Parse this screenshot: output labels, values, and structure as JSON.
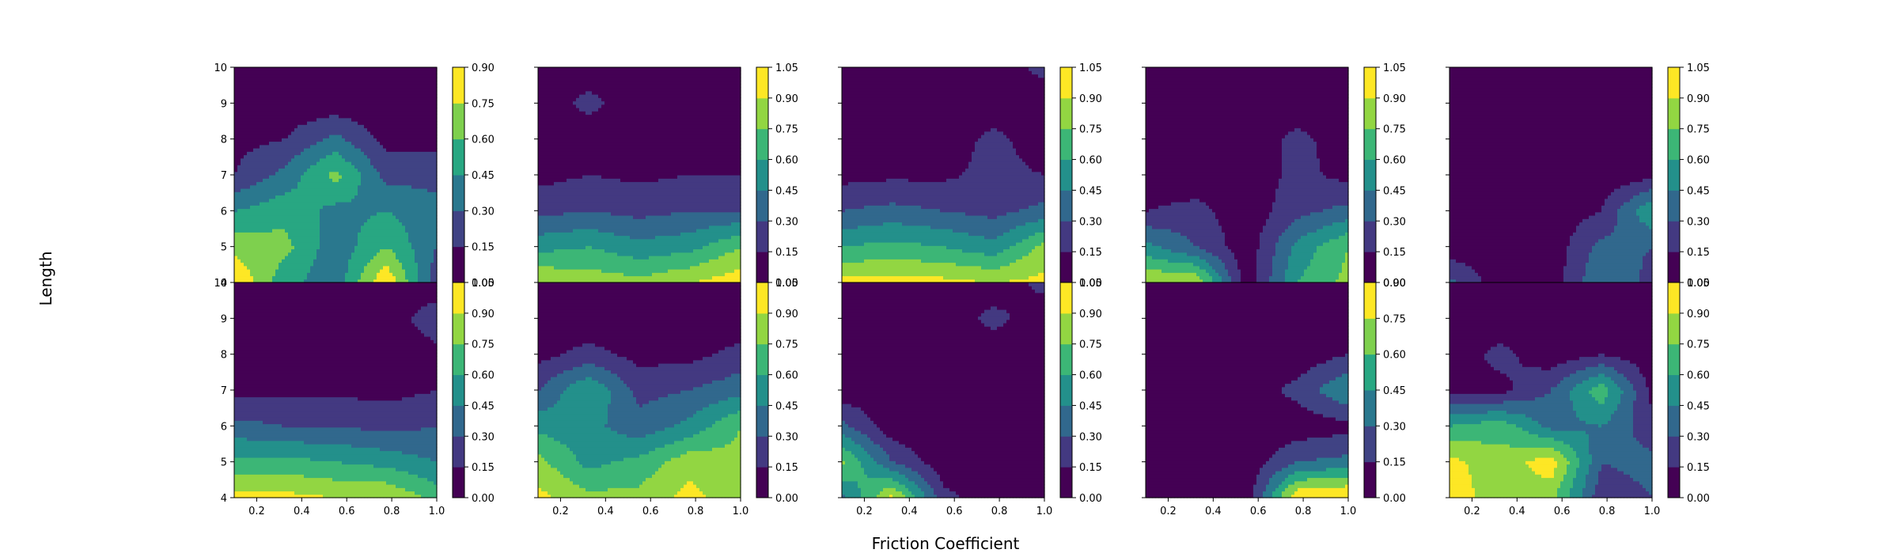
{
  "figure": {
    "xlabel": "Friction Coefficient",
    "ylabel": "Length"
  },
  "chart_data": {
    "type": "heatmap",
    "style": "filled-contour",
    "colormap": "viridis",
    "grid": false,
    "layout": "2 rows x 5 columns",
    "x": [
      0.1,
      0.325,
      0.55,
      0.775,
      1.0
    ],
    "y": [
      4,
      5,
      6,
      7,
      8,
      9,
      10
    ],
    "xlim": [
      0.1,
      1.0
    ],
    "ylim": [
      4,
      10
    ],
    "x_ticks": [
      "0.2",
      "0.4",
      "0.6",
      "0.8",
      "1.0"
    ],
    "y_ticks": [
      "4",
      "5",
      "6",
      "7",
      "8",
      "9",
      "10"
    ],
    "panels": [
      {
        "z": [
          [
            0.9,
            0.5,
            0.35,
            0.9,
            0.2
          ],
          [
            0.7,
            0.65,
            0.35,
            0.6,
            0.3
          ],
          [
            0.45,
            0.55,
            0.4,
            0.45,
            0.35
          ],
          [
            0.15,
            0.35,
            0.65,
            0.25,
            0.25
          ],
          [
            0.1,
            0.15,
            0.35,
            0.1,
            0.1
          ],
          [
            0.05,
            0.05,
            0.05,
            0.05,
            0.05
          ],
          [
            0.05,
            0.05,
            0.05,
            0.05,
            0.05
          ]
        ],
        "colorbar": [
          "0.00",
          "0.15",
          "0.30",
          "0.45",
          "0.60",
          "0.75",
          "0.90"
        ],
        "zmax": 0.9
      },
      {
        "z": [
          [
            0.9,
            0.85,
            0.8,
            0.9,
            1.0
          ],
          [
            0.55,
            0.6,
            0.5,
            0.55,
            0.75
          ],
          [
            0.25,
            0.3,
            0.25,
            0.3,
            0.3
          ],
          [
            0.1,
            0.15,
            0.12,
            0.15,
            0.15
          ],
          [
            0.05,
            0.05,
            0.05,
            0.05,
            0.05
          ],
          [
            0.05,
            0.2,
            0.05,
            0.05,
            0.05
          ],
          [
            0.05,
            0.05,
            0.05,
            0.05,
            0.05
          ]
        ],
        "colorbar": [
          "0.00",
          "0.15",
          "0.30",
          "0.45",
          "0.60",
          "0.75",
          "0.90",
          "1.05"
        ],
        "zmax": 1.05
      },
      {
        "z": [
          [
            0.95,
            0.95,
            0.95,
            0.9,
            0.95
          ],
          [
            0.6,
            0.65,
            0.6,
            0.5,
            0.8
          ],
          [
            0.3,
            0.35,
            0.3,
            0.25,
            0.35
          ],
          [
            0.1,
            0.12,
            0.12,
            0.2,
            0.15
          ],
          [
            0.05,
            0.05,
            0.05,
            0.2,
            0.05
          ],
          [
            0.05,
            0.05,
            0.05,
            0.05,
            0.05
          ],
          [
            0.05,
            0.05,
            0.05,
            0.05,
            0.2
          ]
        ],
        "colorbar": [
          "0.00",
          "0.15",
          "0.30",
          "0.45",
          "0.60",
          "0.75",
          "0.90",
          "1.05"
        ],
        "zmax": 1.05
      },
      {
        "z": [
          [
            0.9,
            0.9,
            0.05,
            0.6,
            0.8
          ],
          [
            0.5,
            0.3,
            0.05,
            0.5,
            0.75
          ],
          [
            0.15,
            0.2,
            0.05,
            0.25,
            0.35
          ],
          [
            0.05,
            0.05,
            0.05,
            0.2,
            0.1
          ],
          [
            0.05,
            0.05,
            0.05,
            0.2,
            0.05
          ],
          [
            0.05,
            0.05,
            0.05,
            0.05,
            0.05
          ],
          [
            0.05,
            0.05,
            0.05,
            0.05,
            0.05
          ]
        ],
        "colorbar": [
          "0.00",
          "0.15",
          "0.30",
          "0.45",
          "0.60",
          "0.75",
          "0.90",
          "1.05"
        ],
        "zmax": 1.05
      },
      {
        "z": [
          [
            0.35,
            0.05,
            0.05,
            0.45,
            0.25
          ],
          [
            0.05,
            0.05,
            0.05,
            0.35,
            0.3
          ],
          [
            0.05,
            0.05,
            0.05,
            0.15,
            0.6
          ],
          [
            0.05,
            0.05,
            0.05,
            0.05,
            0.1
          ],
          [
            0.05,
            0.05,
            0.05,
            0.05,
            0.05
          ],
          [
            0.05,
            0.05,
            0.05,
            0.05,
            0.05
          ],
          [
            0.05,
            0.05,
            0.05,
            0.05,
            0.05
          ]
        ],
        "colorbar": [
          "0.00",
          "0.15",
          "0.30",
          "0.45",
          "0.60",
          "0.75",
          "0.90",
          "1.05"
        ],
        "zmax": 1.05
      },
      {
        "z": [
          [
            0.95,
            0.95,
            0.9,
            0.9,
            0.7
          ],
          [
            0.65,
            0.65,
            0.6,
            0.55,
            0.45
          ],
          [
            0.35,
            0.3,
            0.3,
            0.25,
            0.3
          ],
          [
            0.1,
            0.12,
            0.12,
            0.1,
            0.15
          ],
          [
            0.05,
            0.05,
            0.05,
            0.05,
            0.1
          ],
          [
            0.05,
            0.05,
            0.05,
            0.05,
            0.25
          ],
          [
            0.05,
            0.05,
            0.05,
            0.05,
            0.05
          ]
        ],
        "colorbar": [
          "0.00",
          "0.15",
          "0.30",
          "0.45",
          "0.60",
          "0.75",
          "0.90",
          "1.05"
        ],
        "zmax": 1.05
      },
      {
        "z": [
          [
            0.95,
            0.8,
            0.8,
            0.95,
            0.8
          ],
          [
            0.8,
            0.55,
            0.65,
            0.85,
            0.8
          ],
          [
            0.55,
            0.5,
            0.35,
            0.5,
            0.75
          ],
          [
            0.3,
            0.6,
            0.25,
            0.3,
            0.4
          ],
          [
            0.1,
            0.2,
            0.1,
            0.1,
            0.2
          ],
          [
            0.05,
            0.05,
            0.05,
            0.05,
            0.05
          ],
          [
            0.05,
            0.05,
            0.05,
            0.05,
            0.05
          ]
        ],
        "colorbar": [
          "0.00",
          "0.15",
          "0.30",
          "0.45",
          "0.60",
          "0.75",
          "0.90",
          "1.05"
        ],
        "zmax": 1.05
      },
      {
        "z": [
          [
            0.4,
            0.95,
            0.2,
            0.05,
            0.05
          ],
          [
            0.8,
            0.3,
            0.05,
            0.05,
            0.05
          ],
          [
            0.35,
            0.05,
            0.05,
            0.05,
            0.05
          ],
          [
            0.05,
            0.05,
            0.05,
            0.05,
            0.05
          ],
          [
            0.05,
            0.05,
            0.05,
            0.05,
            0.05
          ],
          [
            0.05,
            0.05,
            0.05,
            0.2,
            0.05
          ],
          [
            0.05,
            0.05,
            0.05,
            0.05,
            0.2
          ]
        ],
        "colorbar": [
          "0.00",
          "0.15",
          "0.30",
          "0.45",
          "0.60",
          "0.75",
          "0.90",
          "1.05"
        ],
        "zmax": 1.05
      },
      {
        "z": [
          [
            0.05,
            0.05,
            0.05,
            0.9,
            0.95
          ],
          [
            0.05,
            0.05,
            0.05,
            0.3,
            0.35
          ],
          [
            0.05,
            0.05,
            0.05,
            0.05,
            0.1
          ],
          [
            0.05,
            0.05,
            0.05,
            0.2,
            0.45
          ],
          [
            0.05,
            0.05,
            0.05,
            0.05,
            0.15
          ],
          [
            0.05,
            0.05,
            0.05,
            0.05,
            0.05
          ],
          [
            0.05,
            0.05,
            0.05,
            0.05,
            0.05
          ]
        ],
        "colorbar": [
          "0.00",
          "0.15",
          "0.30",
          "0.45",
          "0.60",
          "0.75",
          "0.90"
        ],
        "zmax": 0.9
      },
      {
        "z": [
          [
            1.0,
            0.8,
            0.8,
            0.2,
            0.3
          ],
          [
            0.95,
            0.8,
            1.0,
            0.3,
            0.35
          ],
          [
            0.6,
            0.7,
            0.4,
            0.45,
            0.2
          ],
          [
            0.1,
            0.1,
            0.3,
            0.7,
            0.1
          ],
          [
            0.05,
            0.2,
            0.05,
            0.15,
            0.05
          ],
          [
            0.05,
            0.05,
            0.05,
            0.05,
            0.05
          ],
          [
            0.05,
            0.05,
            0.05,
            0.05,
            0.05
          ]
        ],
        "colorbar": [
          "0.00",
          "0.15",
          "0.30",
          "0.45",
          "0.60",
          "0.75",
          "0.90",
          "1.05"
        ],
        "zmax": 1.05
      }
    ]
  }
}
